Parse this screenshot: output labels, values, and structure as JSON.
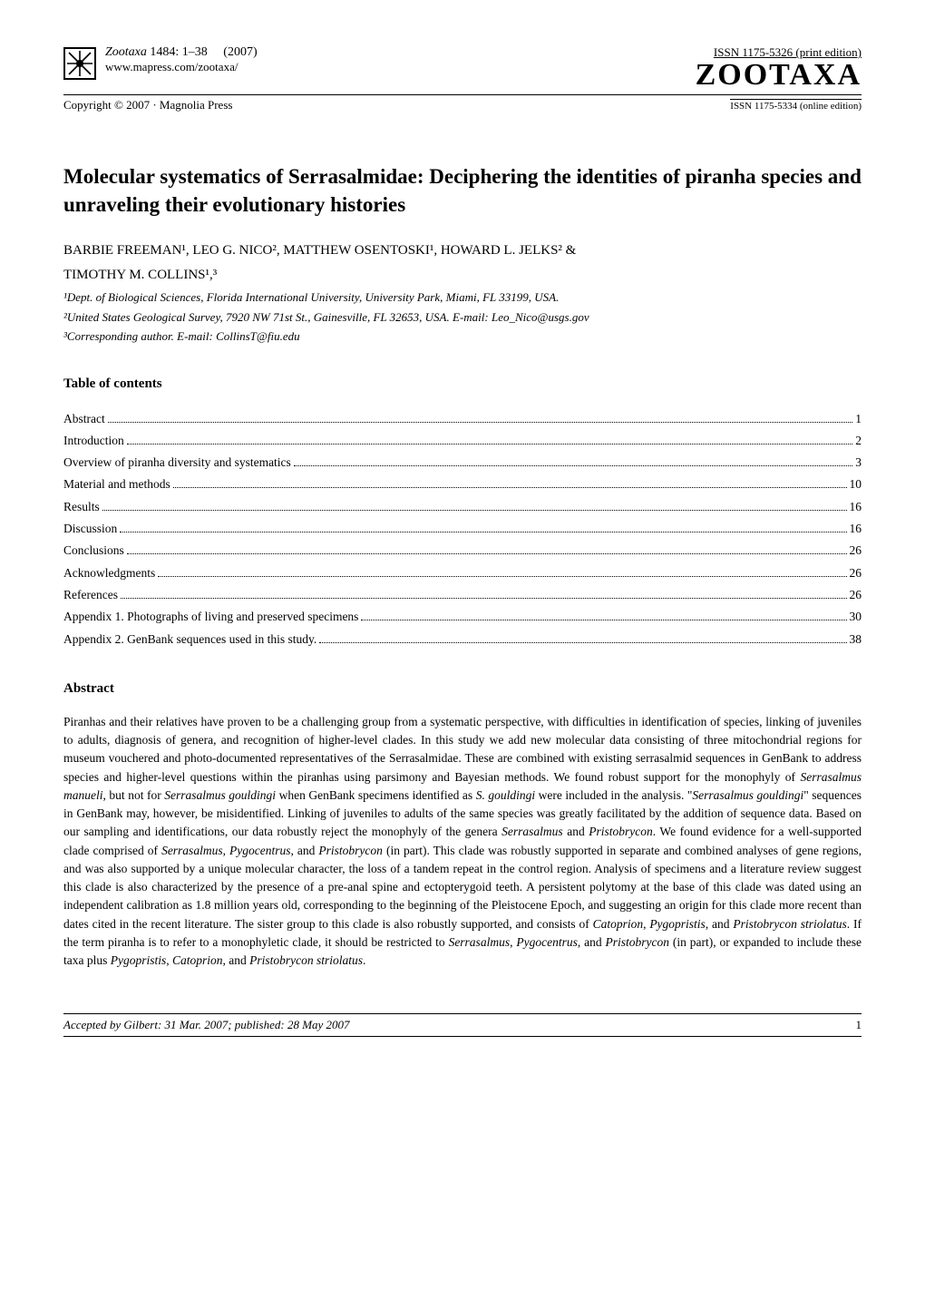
{
  "header": {
    "journal_name": "Zootaxa",
    "issue": "1484: 1–38",
    "year": "(2007)",
    "url": "www.mapress.com/zootaxa/",
    "copyright": "Copyright © 2007  ·  Magnolia Press",
    "issn_print": "ISSN 1175-5326  (print edition)",
    "zootaxa_logo": "ZOOTAXA",
    "issn_online": "ISSN 1175-5334 (online edition)"
  },
  "title": "Molecular systematics of Serrasalmidae: Deciphering the identities of piranha species and unraveling their evolutionary histories",
  "authors_line1": "BARBIE FREEMAN¹, LEO G. NICO², MATTHEW OSENTOSKI¹, HOWARD L. JELKS² &",
  "authors_line2": "TIMOTHY M. COLLINS¹,³",
  "affiliations": [
    "¹Dept. of Biological Sciences, Florida International University, University Park, Miami, FL 33199, USA.",
    "²United States Geological Survey, 7920 NW 71st St., Gainesville, FL 32653, USA. E-mail: Leo_Nico@usgs.gov",
    "³Corresponding author. E-mail: CollinsT@fiu.edu"
  ],
  "toc_title": "Table of contents",
  "toc": [
    {
      "label": "Abstract",
      "page": "1"
    },
    {
      "label": "Introduction",
      "page": "2"
    },
    {
      "label": "Overview of piranha diversity and systematics",
      "page": "3"
    },
    {
      "label": "Material and methods",
      "page": "10"
    },
    {
      "label": "Results",
      "page": "16"
    },
    {
      "label": "Discussion",
      "page": "16"
    },
    {
      "label": "Conclusions",
      "page": "26"
    },
    {
      "label": "Acknowledgments",
      "page": "26"
    },
    {
      "label": "References",
      "page": "26"
    },
    {
      "label": "Appendix 1. Photographs of living and preserved specimens",
      "page": "30"
    },
    {
      "label": "Appendix 2. GenBank sequences used in this study.",
      "page": "38"
    }
  ],
  "abstract_title": "Abstract",
  "abstract_html": "Piranhas and their relatives have proven to be a challenging group from a systematic perspective, with difficulties in identification of species, linking of juveniles to adults, diagnosis of genera, and recognition of higher-level clades. In this study we add new molecular data consisting of three mitochondrial regions for museum vouchered and photo-documented representatives of the Serrasalmidae. These are combined with existing serrasalmid sequences in GenBank to address species and higher-level questions within the piranhas using parsimony and Bayesian methods. We found robust support for the monophyly of <em>Serrasalmus manueli</em>, but not for <em>Serrasalmus gouldingi</em> when GenBank specimens identified as <em>S. gouldingi</em> were included in the analysis. \"<em>Serrasalmus gouldingi</em>\" sequences in GenBank may, however, be misidentified. Linking of juveniles to adults of the same species was greatly facilitated by the addition of sequence data. Based on our sampling and identifications, our data robustly reject the monophyly of the genera <em>Serrasalmus</em> and <em>Pristobrycon</em>. We found evidence for a well-supported clade comprised of <em>Serrasalmus</em>, <em>Pygocentrus</em>, and <em>Pristobrycon</em> (in part). This clade was robustly supported in separate and combined analyses of gene regions, and was also supported by a unique molecular character, the loss of a tandem repeat in the control region. Analysis of specimens and a literature review suggest this clade is also characterized by the presence of a pre-anal spine and ectopterygoid teeth. A persistent polytomy at the base of this clade was dated using an independent calibration as 1.8 million years old, corresponding to the beginning of the Pleistocene Epoch, and suggesting an origin for this clade more recent than dates cited in the recent literature. The sister group to this clade is also robustly supported, and consists of <em>Catoprion</em>, <em>Pygopristis</em>, and <em>Pristobrycon striolatus</em>. If the term piranha is to refer to a monophyletic clade, it should be restricted to <em>Serrasalmus</em>, <em>Pygocentrus</em>, and <em>Pristobrycon</em> (in part), or expanded to include these taxa plus <em>Pygopristis</em>, <em>Catoprion</em>, and <em>Pristobrycon striolatus</em>.",
  "footer": {
    "accepted": "Accepted by Gilbert: 31 Mar. 2007; published: 28 May 2007",
    "page": "1"
  },
  "colors": {
    "text": "#000000",
    "background": "#ffffff"
  }
}
